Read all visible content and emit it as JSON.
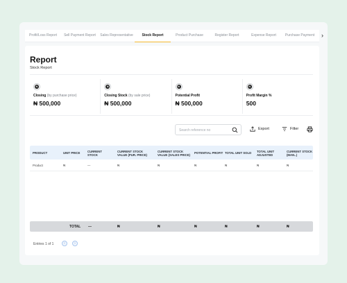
{
  "tabs": [
    {
      "label": "Profit/Loss Report",
      "active": false
    },
    {
      "label": "Sell Payment Report",
      "active": false
    },
    {
      "label": "Sales Representative",
      "active": false
    },
    {
      "label": "Stock Report",
      "active": true
    },
    {
      "label": "Product Purchase",
      "active": false
    },
    {
      "label": "Register Report",
      "active": false
    },
    {
      "label": "Expense Report",
      "active": false
    },
    {
      "label": "Purchase Payment",
      "active": false
    }
  ],
  "tab_arrow": "›",
  "page": {
    "title": "Report",
    "subtitle": "Stock Report"
  },
  "stats": [
    {
      "label": "Closing",
      "muted": "(by purchase price)",
      "value": "₦ 500,000"
    },
    {
      "label": "Closing Stock",
      "muted": "(by sale price)",
      "value": "₦ 500,000"
    },
    {
      "label": "Potential Profit",
      "muted": "",
      "value": "₦ 500,000"
    },
    {
      "label": "Profit Margin %",
      "muted": "",
      "value": "500"
    }
  ],
  "stat_icon_glyph": "N",
  "toolbar": {
    "search_placeholder": "Search reference no",
    "export_label": "Export",
    "filter_label": "Filter"
  },
  "table": {
    "headers": [
      "PRODUCT",
      "UNIT PRICE",
      "CURRENT STOCK",
      "CURRENT STOCK VALUE (PUR. PRICE)",
      "CURRENT STOCK VALUE (SALES PRICE)",
      "POTENTIAL PROFIT",
      "TOTAL UNIT SOLD",
      "TOTAL UNIT ADJUSTED",
      "CURRENT STOCK (MAN..)"
    ],
    "row": [
      "Product",
      "₦",
      "—",
      "₦",
      "₦",
      "₦",
      "₦",
      "₦",
      "₦"
    ],
    "total": [
      "TOTAL",
      "—",
      "₦",
      "₦",
      "₦",
      "₦",
      "₦",
      "₦"
    ]
  },
  "footer": {
    "entries": "Entries 1 of 1",
    "prev": "‹",
    "next": "›"
  },
  "colors": {
    "accent": "#f5b82e",
    "header_bg": "#e8f1fb",
    "page_bg": "#e4f2ea"
  }
}
